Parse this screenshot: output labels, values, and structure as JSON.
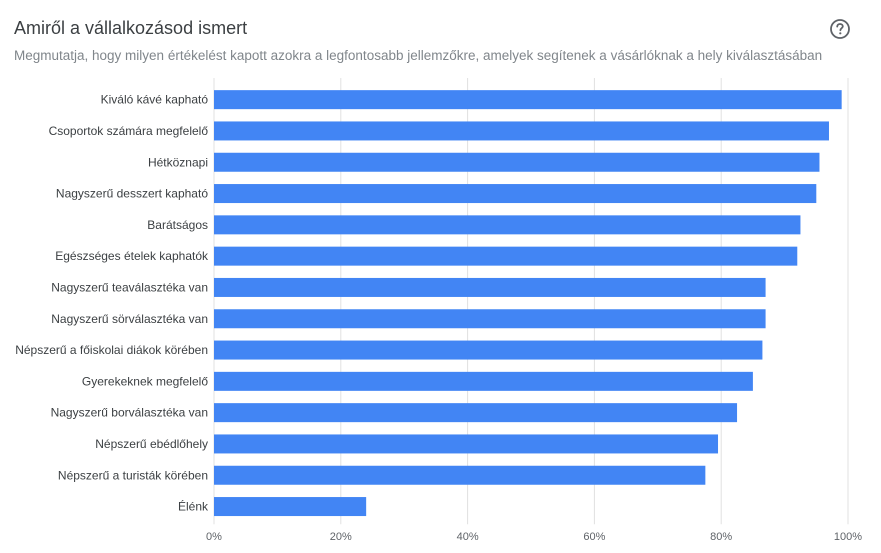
{
  "header": {
    "title": "Amiről a vállalkozásod ismert",
    "subtitle": "Megmutatja, hogy milyen értékelést kapott azokra a legfontosabb jellemzőkre, amelyek segítenek a vásárlóknak a hely kiválasztásában",
    "help_icon": "help-circle-icon"
  },
  "chart_data": {
    "type": "bar",
    "orientation": "horizontal",
    "categories": [
      "Kiváló kávé kapható",
      "Csoportok számára megfelelő",
      "Hétköznapi",
      "Nagyszerű desszert kapható",
      "Barátságos",
      "Egészséges ételek kaphatók",
      "Nagyszerű teaválasztéka van",
      "Nagyszerű sörválasztéka van",
      "Népszerű a főiskolai diákok körében",
      "Gyerekeknek megfelelő",
      "Nagyszerű borválasztéka van",
      "Népszerű ebédlőhely",
      "Népszerű a turisták körében",
      "Élénk"
    ],
    "values": [
      99,
      97,
      95.5,
      95,
      92.5,
      92,
      87,
      87,
      86.5,
      85,
      82.5,
      79.5,
      77.5,
      24
    ],
    "xlim": [
      0,
      100
    ],
    "x_ticks": [
      "0%",
      "20%",
      "40%",
      "60%",
      "80%",
      "100%"
    ],
    "x_tick_values": [
      0,
      20,
      40,
      60,
      80,
      100
    ],
    "grid": true,
    "bar_color": "#4285f4",
    "grid_color": "#e0e0e0"
  }
}
